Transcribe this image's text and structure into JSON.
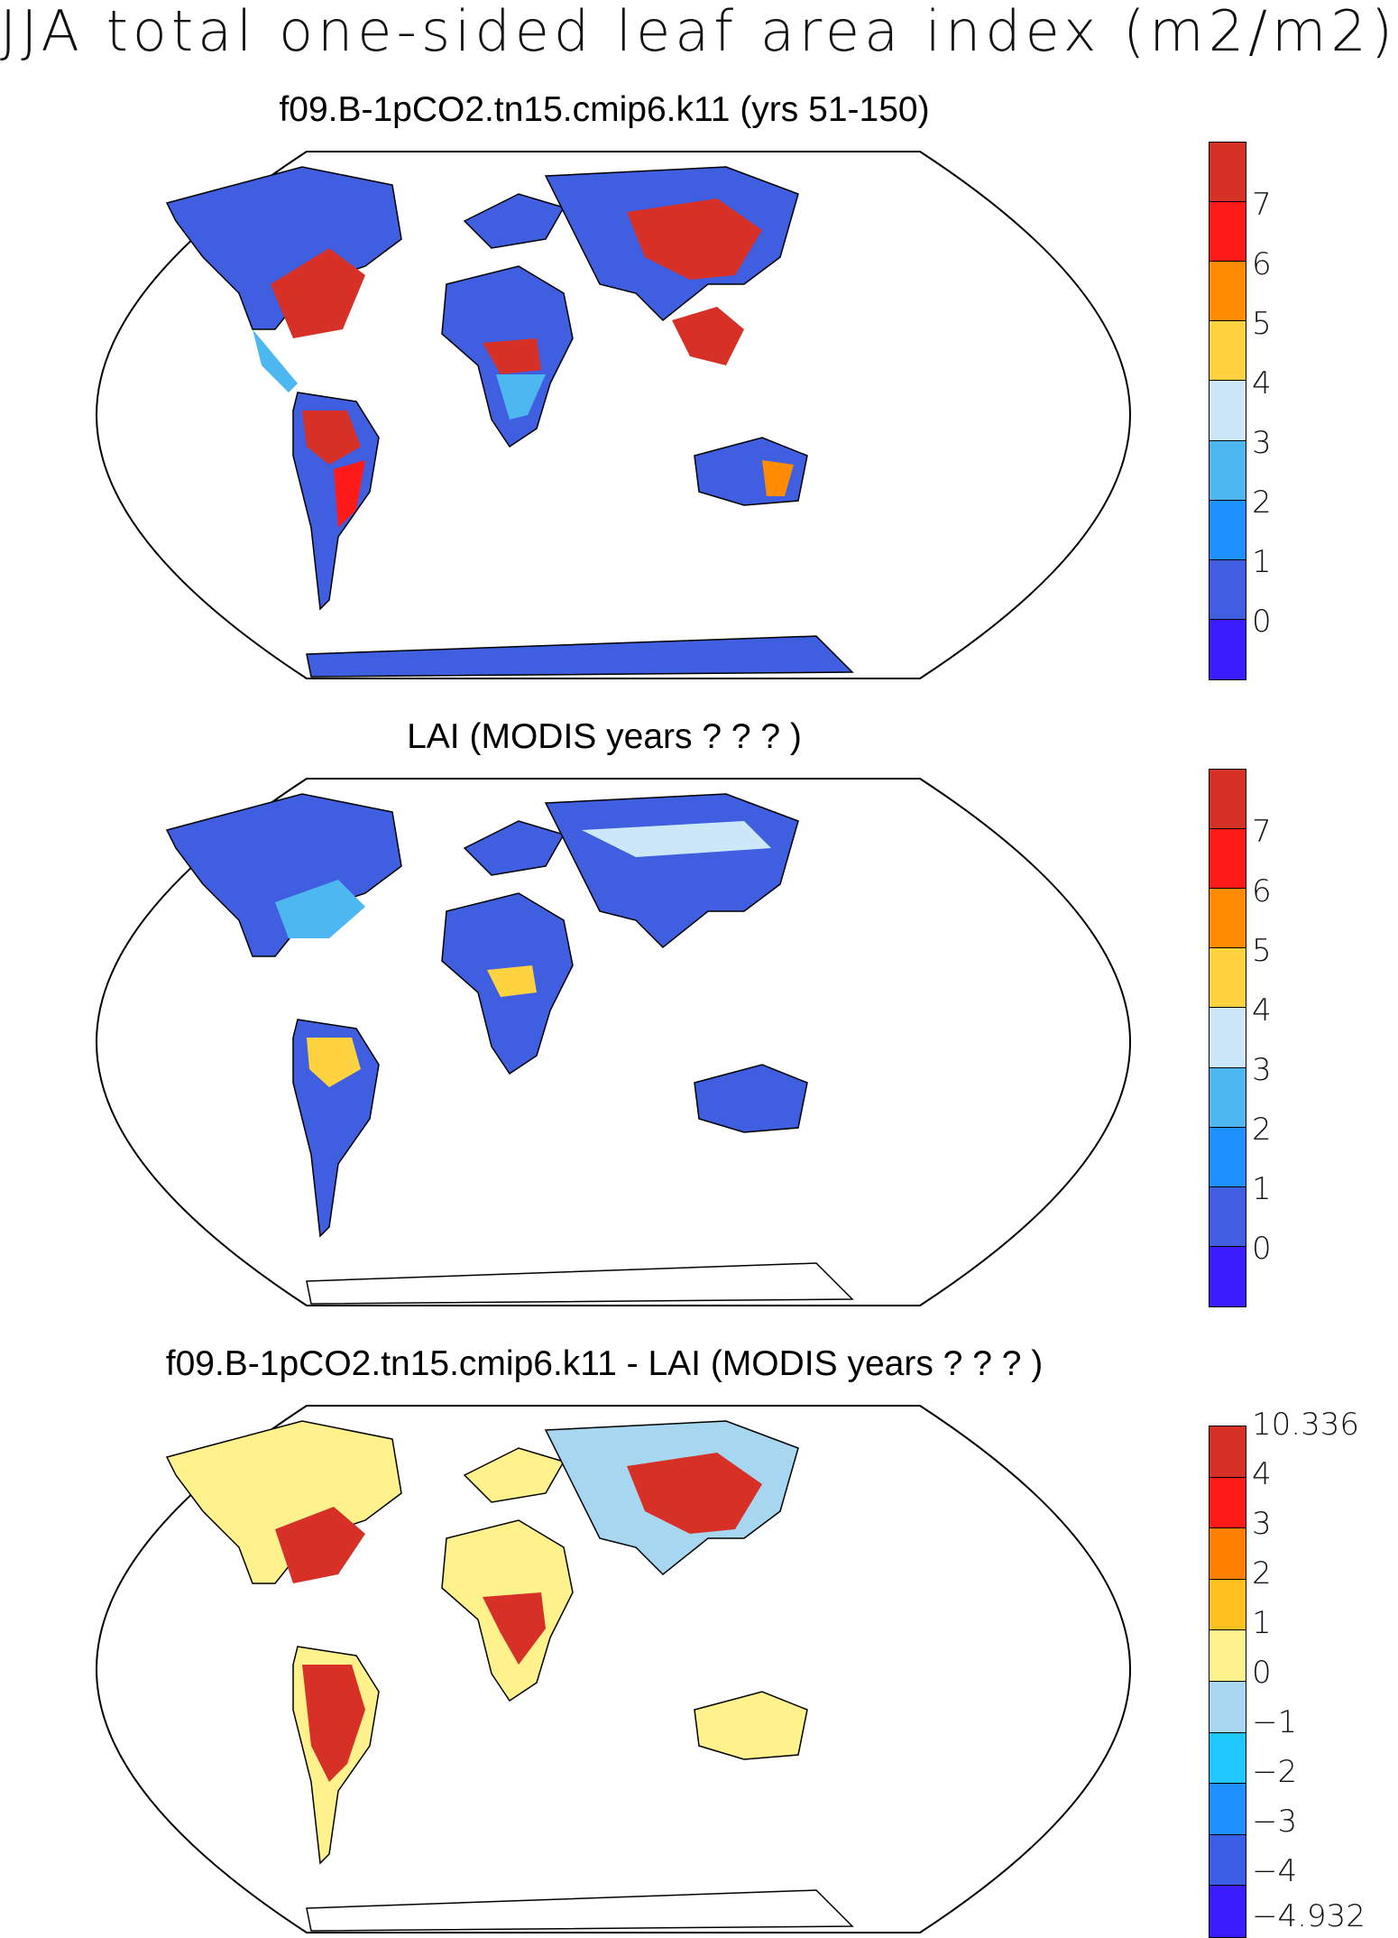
{
  "title": "JJA total one-sided leaf area index (m2/m2)",
  "panels": [
    {
      "title": "f09.B-1pCO2.tn15.cmip6.k11 (yrs 51-150)",
      "colorbar": {
        "labels": [
          "7",
          "6",
          "5",
          "4",
          "3",
          "2",
          "1",
          "0"
        ],
        "colors": [
          "#d73027",
          "#ff1a1a",
          "#ff8c00",
          "#ffd23f",
          "#cce8f8",
          "#4db8f0",
          "#1e90ff",
          "#3f5fe0",
          "#3a1cff"
        ]
      }
    },
    {
      "title": "LAI (MODIS years ? ? ? )",
      "colorbar": {
        "labels": [
          "7",
          "6",
          "5",
          "4",
          "3",
          "2",
          "1",
          "0"
        ],
        "colors": [
          "#d73027",
          "#ff1a1a",
          "#ff8c00",
          "#ffd23f",
          "#cce8f8",
          "#4db8f0",
          "#1e90ff",
          "#3f5fe0",
          "#3a1cff"
        ]
      }
    },
    {
      "title": "f09.B-1pCO2.tn15.cmip6.k11 - LAI (MODIS years ? ? ? )",
      "colorbar": {
        "labels": [
          "10.336",
          "4",
          "3",
          "2",
          "1",
          "0",
          "−1",
          "−2",
          "−3",
          "−4",
          "−4.932"
        ],
        "colors": [
          "#d73027",
          "#ff1a1a",
          "#ff7f00",
          "#ffbf1f",
          "#fff28c",
          "#a6d6f0",
          "#1ec8ff",
          "#1e90ff",
          "#3a5fe6",
          "#3a1cff"
        ]
      }
    }
  ]
}
